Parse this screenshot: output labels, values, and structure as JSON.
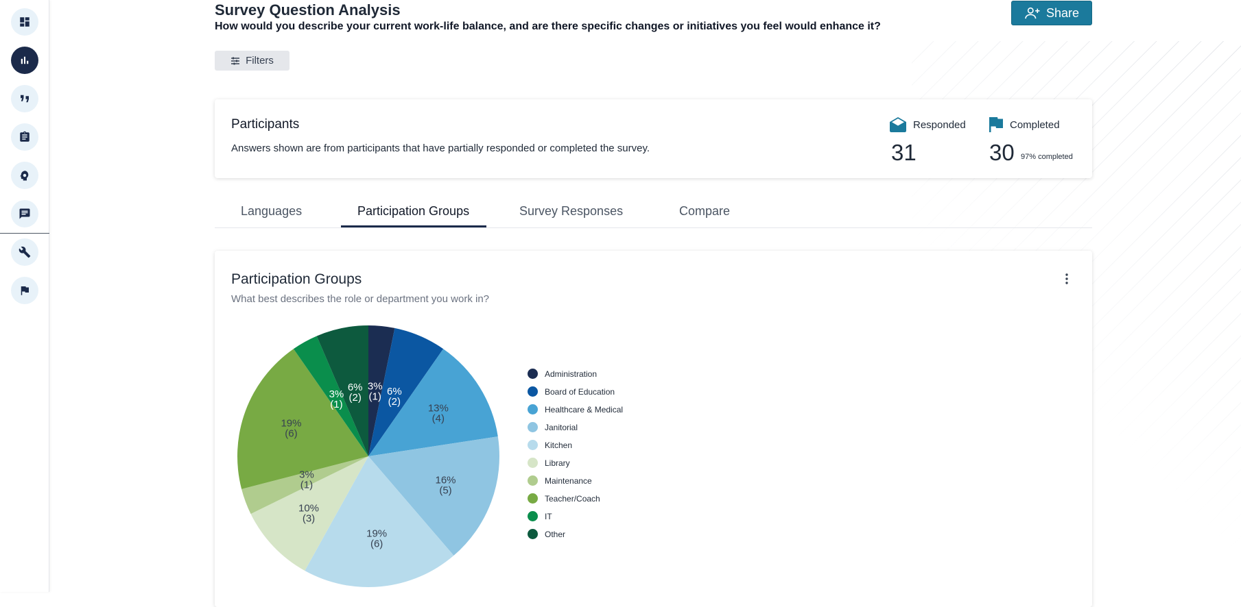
{
  "sidebar": {
    "items": [
      {
        "name": "dashboard",
        "icon": "dashboard-icon",
        "active": false
      },
      {
        "name": "analytics",
        "icon": "bar-chart-icon",
        "active": true
      },
      {
        "name": "quotes",
        "icon": "quote-icon",
        "active": false
      },
      {
        "name": "surveys",
        "icon": "clipboard-icon",
        "active": false
      },
      {
        "name": "insights",
        "icon": "head-idea-icon",
        "active": false
      },
      {
        "name": "messages",
        "icon": "chat-icon",
        "active": false
      },
      {
        "name": "tools",
        "icon": "wrench-icon",
        "active": false
      },
      {
        "name": "goals",
        "icon": "flag-icon",
        "active": false
      }
    ]
  },
  "header": {
    "title": "Survey Question Analysis",
    "question": "How would you describe your current work-life balance, and are there specific changes or initiatives you feel would enhance it?",
    "share_label": "Share",
    "filters_label": "Filters"
  },
  "participants": {
    "title": "Participants",
    "description": "Answers shown are from participants that have partially responded or completed the survey.",
    "responded_label": "Responded",
    "responded_value": "31",
    "completed_label": "Completed",
    "completed_value": "30",
    "completed_note": "97% completed"
  },
  "tabs": [
    {
      "label": "Languages",
      "active": false
    },
    {
      "label": "Participation Groups",
      "active": true
    },
    {
      "label": "Survey Responses",
      "active": false
    },
    {
      "label": "Compare",
      "active": false
    }
  ],
  "groups_card": {
    "title": "Participation Groups",
    "subtitle": "What best describes the role or department you work in?"
  },
  "chart_data": {
    "type": "pie",
    "categories": [
      "Administration",
      "Board of Education",
      "Healthcare & Medical",
      "Janitorial",
      "Kitchen",
      "Library",
      "Maintenance",
      "Teacher/Coach",
      "IT",
      "Other"
    ],
    "values": [
      1,
      2,
      4,
      5,
      6,
      3,
      1,
      6,
      1,
      2
    ],
    "labels": [
      [
        "3%",
        "(1)"
      ],
      [
        "6%",
        "(2)"
      ],
      [
        "13%",
        "(4)"
      ],
      [
        "16%",
        "(5)"
      ],
      [
        "19%",
        "(6)"
      ],
      [
        "10%",
        "(3)"
      ],
      [
        "3%",
        "(1)"
      ],
      [
        "19%",
        "(6)"
      ],
      [
        "3%",
        "(1)"
      ],
      [
        "6%",
        "(2)"
      ]
    ],
    "colors": [
      "#1b2d52",
      "#0b57a2",
      "#48a3d4",
      "#8fc5e2",
      "#b7dbec",
      "#d6e5c7",
      "#b0cc8e",
      "#78aa44",
      "#0a8e4c",
      "#0d5a3e"
    ],
    "label_colors": [
      "#ffffff",
      "#ffffff",
      "#374151",
      "#374151",
      "#374151",
      "#374151",
      "#374151",
      "#374151",
      "#ffffff",
      "#ffffff"
    ],
    "legend_placement": "right"
  }
}
